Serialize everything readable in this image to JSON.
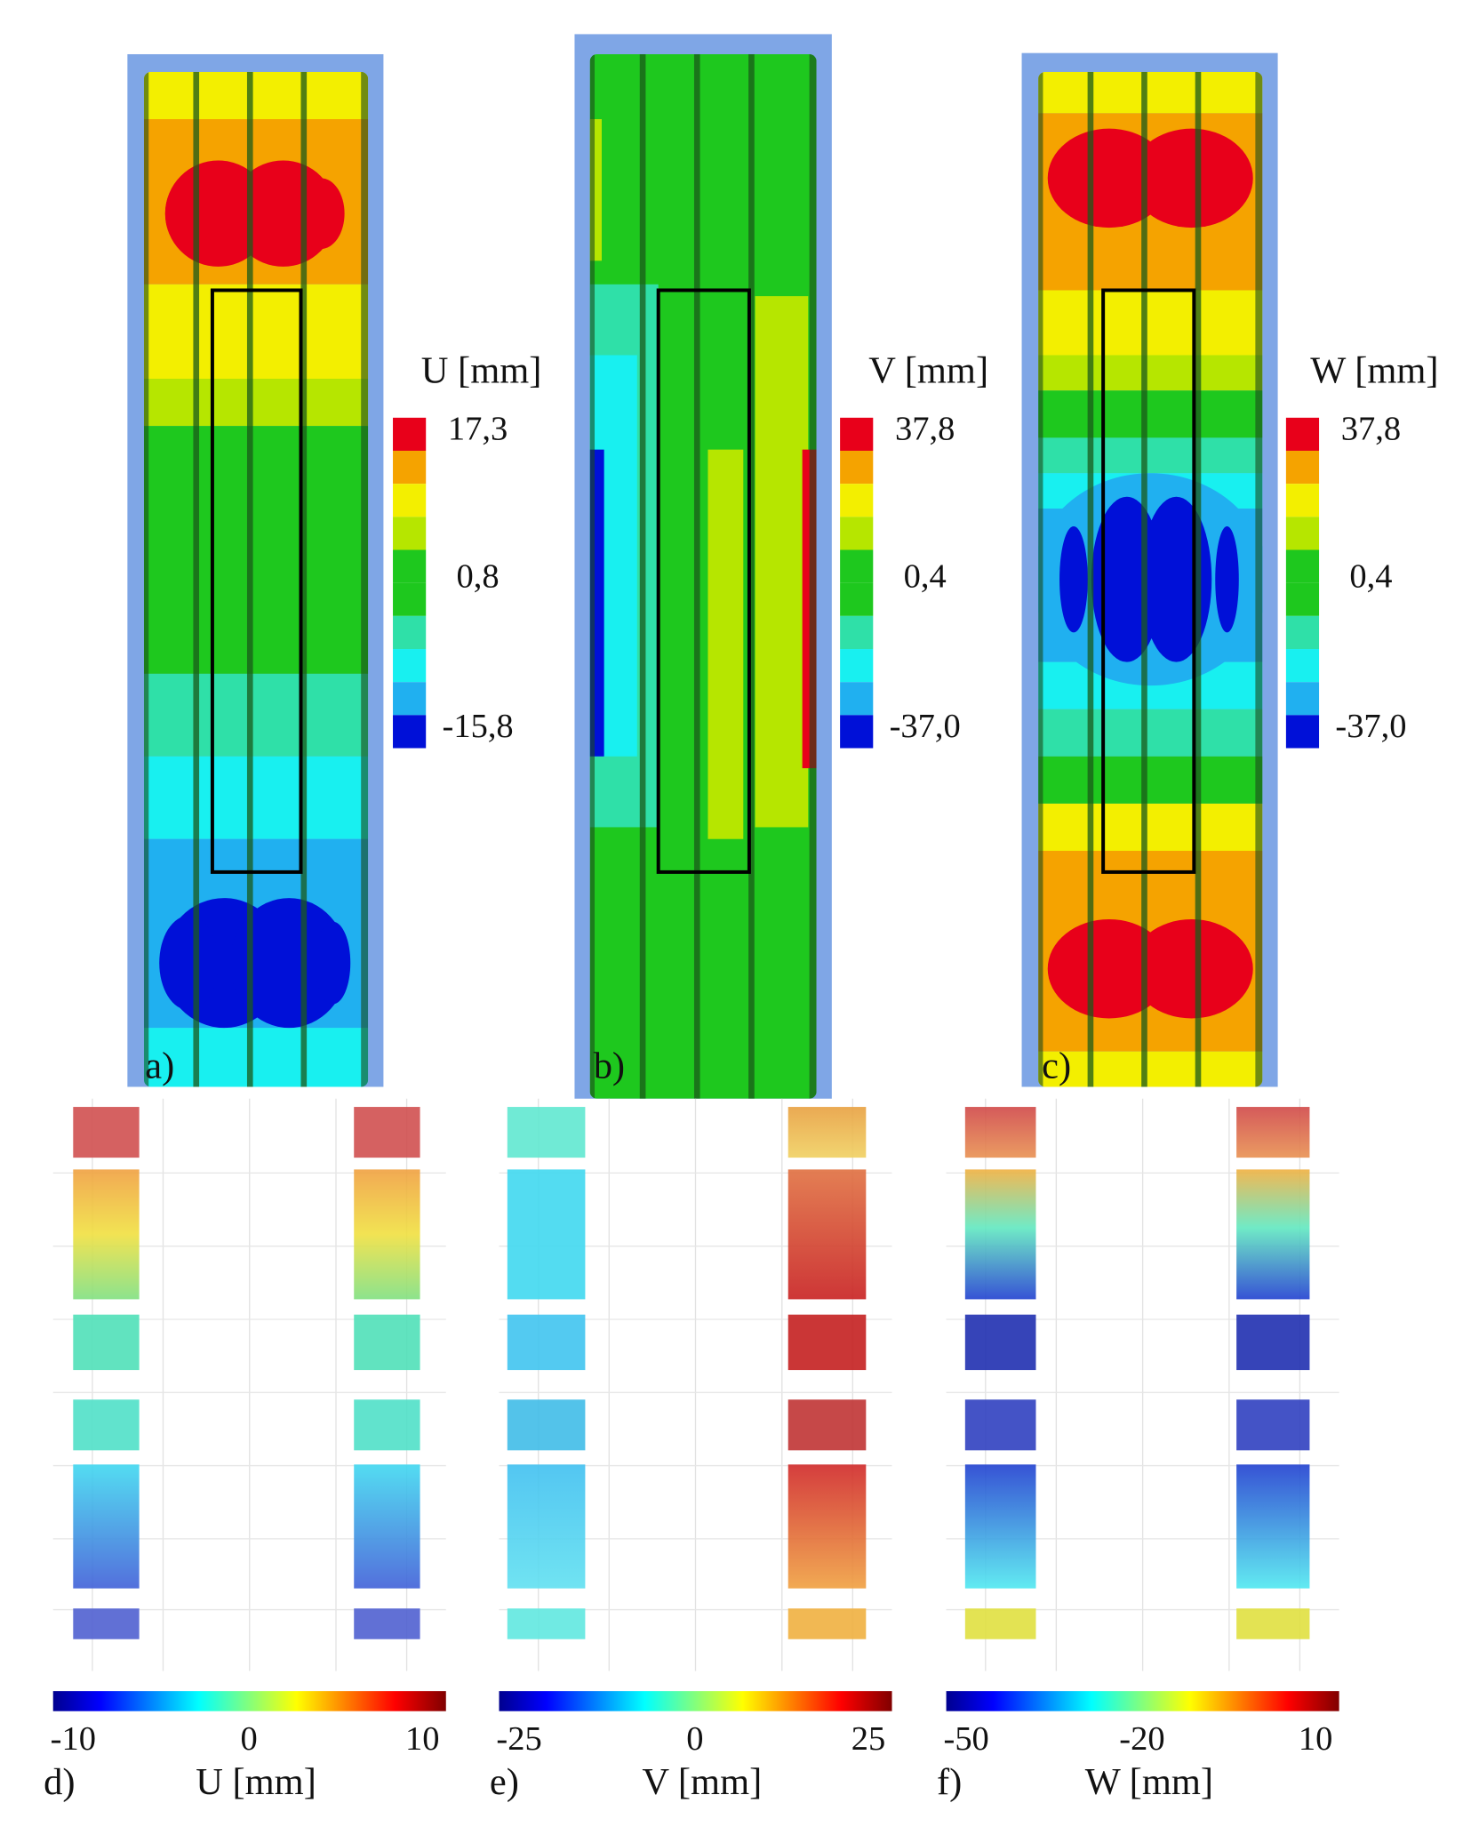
{
  "panels": [
    {
      "label": "a)",
      "colorbar": {
        "title": "U [mm]",
        "ticks": [
          "17,3",
          "0,8",
          "-15,8"
        ]
      }
    },
    {
      "label": "b)",
      "colorbar": {
        "title": "V [mm]",
        "ticks": [
          "37,8",
          "0,4",
          "-37,0"
        ]
      }
    },
    {
      "label": "c)",
      "colorbar": {
        "title": "W [mm]",
        "ticks": [
          "37,8",
          "0,4",
          "-37,0"
        ]
      }
    }
  ],
  "profiles": [
    {
      "label": "d)",
      "axis_title": "U [mm]",
      "ticks": [
        "-10",
        "0",
        "10"
      ]
    },
    {
      "label": "e)",
      "axis_title": "V [mm]",
      "ticks": [
        "-25",
        "0",
        "25"
      ]
    },
    {
      "label": "f)",
      "axis_title": "W [mm]",
      "ticks": [
        "-50",
        "-20",
        "10"
      ]
    }
  ]
}
